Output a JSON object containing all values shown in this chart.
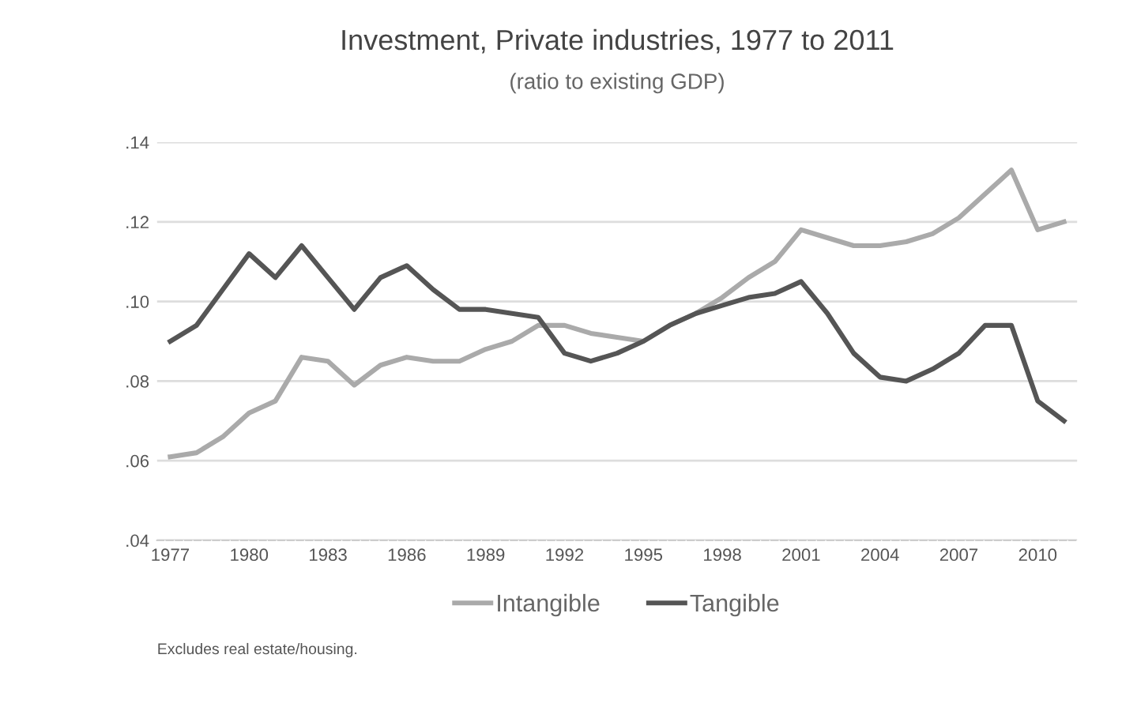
{
  "chart_data": {
    "type": "line",
    "title": "Investment, Private industries, 1977 to 2011",
    "subtitle": "(ratio to existing GDP)",
    "x": [
      1977,
      1978,
      1979,
      1980,
      1981,
      1982,
      1983,
      1984,
      1985,
      1986,
      1987,
      1988,
      1989,
      1990,
      1991,
      1992,
      1993,
      1994,
      1995,
      1996,
      1997,
      1998,
      1999,
      2000,
      2001,
      2002,
      2003,
      2004,
      2005,
      2006,
      2007,
      2008,
      2009,
      2010,
      2011
    ],
    "series": [
      {
        "name": "Intangible",
        "color": "#aaaaaa",
        "values": [
          0.061,
          0.062,
          0.066,
          0.072,
          0.075,
          0.086,
          0.085,
          0.079,
          0.084,
          0.086,
          0.085,
          0.085,
          0.088,
          0.09,
          0.094,
          0.094,
          0.092,
          0.091,
          0.09,
          0.094,
          0.097,
          0.101,
          0.106,
          0.11,
          0.118,
          0.116,
          0.114,
          0.114,
          0.115,
          0.117,
          0.121,
          0.127,
          0.133,
          0.118,
          0.12
        ]
      },
      {
        "name": "Tangible",
        "color": "#555555",
        "values": [
          0.09,
          0.094,
          0.103,
          0.112,
          0.106,
          0.114,
          0.106,
          0.098,
          0.106,
          0.109,
          0.103,
          0.098,
          0.098,
          0.097,
          0.096,
          0.087,
          0.085,
          0.087,
          0.09,
          0.094,
          0.097,
          0.099,
          0.101,
          0.102,
          0.105,
          0.097,
          0.087,
          0.081,
          0.08,
          0.083,
          0.087,
          0.094,
          0.094,
          0.075,
          0.07
        ]
      }
    ],
    "xlim": [
      1976.5,
      2011.5
    ],
    "xticks": [
      1977,
      1980,
      1983,
      1986,
      1989,
      1992,
      1995,
      1998,
      2001,
      2004,
      2007,
      2010
    ],
    "ylim": [
      0.04,
      0.14
    ],
    "yticks": [
      {
        "value": 0.04,
        "label": ".04"
      },
      {
        "value": 0.06,
        "label": ".06"
      },
      {
        "value": 0.08,
        "label": ".08"
      },
      {
        "value": 0.1,
        "label": ".10"
      },
      {
        "value": 0.12,
        "label": ".12"
      },
      {
        "value": 0.14,
        "label": ".14"
      }
    ],
    "grid": "y",
    "legend": "bottom",
    "annotations": [
      "Excludes real estate/housing."
    ]
  }
}
